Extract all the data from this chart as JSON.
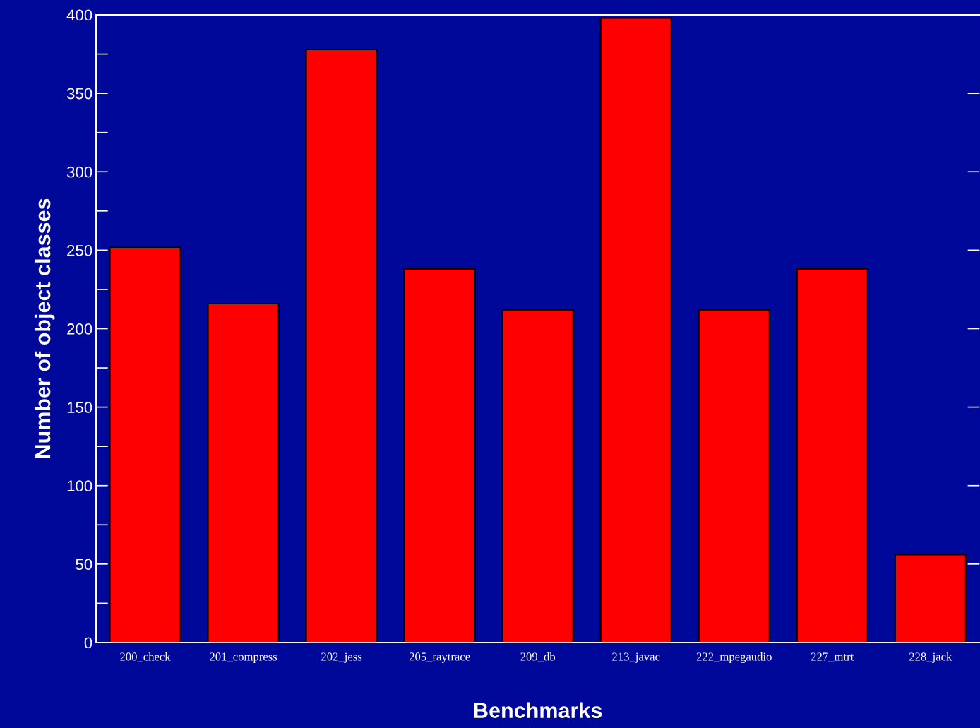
{
  "chart_data": {
    "type": "bar",
    "xlabel": "Benchmarks",
    "ylabel": "Number of object classes",
    "categories": [
      "200_check",
      "201_compress",
      "202_jess",
      "205_raytrace",
      "209_db",
      "213_javac",
      "222_mpegaudio",
      "227_mtrt",
      "228_jack"
    ],
    "values": [
      252,
      216,
      378,
      238,
      212,
      398,
      212,
      238,
      56
    ],
    "color": "#ff0000",
    "ylim": [
      0,
      400
    ],
    "yticks": [
      0,
      50,
      100,
      150,
      200,
      250,
      300,
      350,
      400
    ],
    "grid": false,
    "legend": false
  }
}
